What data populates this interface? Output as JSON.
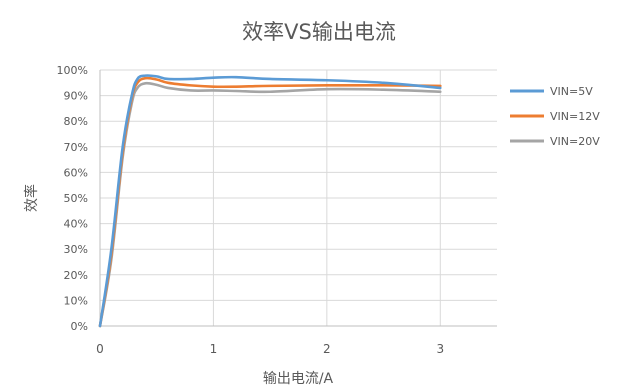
{
  "chart_data": {
    "type": "line",
    "title": "效率VS输出电流",
    "xlabel": "输出电流/A",
    "ylabel": "效率",
    "xlim": [
      0,
      3.5
    ],
    "ylim": [
      0,
      100
    ],
    "x_ticks": [
      0,
      1,
      2,
      3
    ],
    "y_ticks": [
      0,
      10,
      20,
      30,
      40,
      50,
      60,
      70,
      80,
      90,
      100
    ],
    "x_tick_labels": [
      "0",
      "1",
      "2",
      "3"
    ],
    "y_tick_labels": [
      "0%",
      "10%",
      "20%",
      "30%",
      "40%",
      "50%",
      "60%",
      "70%",
      "80%",
      "90%",
      "100%"
    ],
    "grid": "vertical",
    "legend_position": "right",
    "series": [
      {
        "name": "VIN=5V",
        "color": "#5b9bd5",
        "points": [
          [
            0,
            0
          ],
          [
            0.1,
            30
          ],
          [
            0.2,
            70
          ],
          [
            0.28,
            90
          ],
          [
            0.33,
            96.5
          ],
          [
            0.4,
            97.8
          ],
          [
            0.5,
            97.5
          ],
          [
            0.6,
            96.5
          ],
          [
            0.8,
            96.5
          ],
          [
            1.0,
            97
          ],
          [
            1.2,
            97.2
          ],
          [
            1.5,
            96.5
          ],
          [
            2.0,
            96
          ],
          [
            2.5,
            95
          ],
          [
            3.0,
            93
          ]
        ]
      },
      {
        "name": "VIN=12V",
        "color": "#ed7d31",
        "points": [
          [
            0,
            0
          ],
          [
            0.1,
            28
          ],
          [
            0.2,
            68
          ],
          [
            0.28,
            89
          ],
          [
            0.33,
            95
          ],
          [
            0.4,
            96.8
          ],
          [
            0.5,
            96.3
          ],
          [
            0.6,
            95
          ],
          [
            0.8,
            94
          ],
          [
            1.0,
            93.5
          ],
          [
            1.2,
            93.5
          ],
          [
            1.5,
            93.8
          ],
          [
            2.0,
            94
          ],
          [
            2.5,
            94
          ],
          [
            3.0,
            93.8
          ]
        ]
      },
      {
        "name": "VIN=20V",
        "color": "#a5a5a5",
        "points": [
          [
            0,
            0
          ],
          [
            0.1,
            26
          ],
          [
            0.2,
            66
          ],
          [
            0.28,
            87
          ],
          [
            0.33,
            93
          ],
          [
            0.4,
            94.8
          ],
          [
            0.5,
            94.2
          ],
          [
            0.6,
            93
          ],
          [
            0.8,
            92
          ],
          [
            1.0,
            92
          ],
          [
            1.2,
            91.8
          ],
          [
            1.5,
            91.5
          ],
          [
            2.0,
            92.5
          ],
          [
            2.5,
            92.3
          ],
          [
            3.0,
            91.5
          ]
        ]
      }
    ]
  }
}
